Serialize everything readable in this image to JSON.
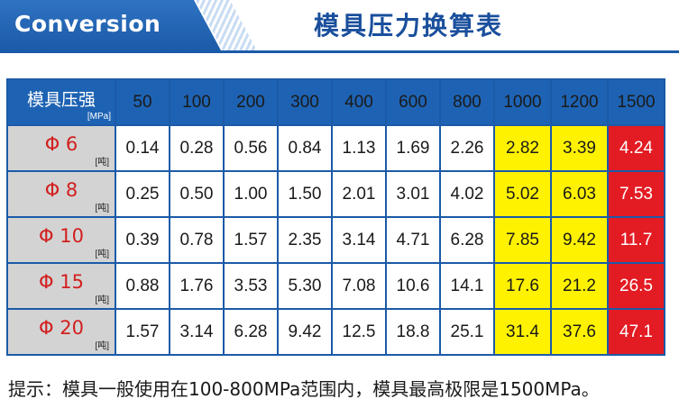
{
  "header": {
    "title_en": "Conversion",
    "title_cn": "模具压力换算表"
  },
  "table": {
    "corner_label": "模具压强",
    "corner_unit": "[MPa]",
    "columns": [
      "50",
      "100",
      "200",
      "300",
      "400",
      "600",
      "800",
      "1000",
      "1200",
      "1500"
    ],
    "row_unit": "[吨]",
    "rows": [
      {
        "label": "Φ 6",
        "values": [
          "0.14",
          "0.28",
          "0.56",
          "0.84",
          "1.13",
          "1.69",
          "2.26",
          "2.82",
          "3.39",
          "4.24"
        ]
      },
      {
        "label": "Φ 8",
        "values": [
          "0.25",
          "0.50",
          "1.00",
          "1.50",
          "2.01",
          "3.01",
          "4.02",
          "5.02",
          "6.03",
          "7.53"
        ]
      },
      {
        "label": "Φ 10",
        "values": [
          "0.39",
          "0.78",
          "1.57",
          "2.35",
          "3.14",
          "4.71",
          "6.28",
          "7.85",
          "9.42",
          "11.7"
        ]
      },
      {
        "label": "Φ 15",
        "values": [
          "0.88",
          "1.76",
          "3.53",
          "5.30",
          "7.08",
          "10.6",
          "14.1",
          "17.6",
          "21.2",
          "26.5"
        ]
      },
      {
        "label": "Φ 20",
        "values": [
          "1.57",
          "3.14",
          "6.28",
          "9.42",
          "12.5",
          "18.8",
          "25.1",
          "31.4",
          "37.6",
          "47.1"
        ]
      }
    ]
  },
  "colors": {
    "header_blue": "#1b5aa8",
    "title_blue": "#1a4f9c",
    "row_head_gray": "#d3d3d3",
    "row_label_red": "#d21f1f",
    "highlight_yellow": "#fff200",
    "highlight_red": "#e31b23"
  },
  "tip": "提示：模具一般使用在100-800MPa范围内，模具最高极限是1500MPa。"
}
